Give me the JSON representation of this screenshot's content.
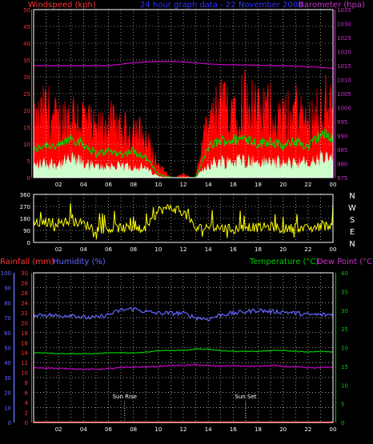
{
  "header": {
    "wind_label": "Windspeed (kph)",
    "title": "24 hour graph data - 22 November 2008",
    "baro_label": "Barometer (hpa)"
  },
  "lower_header": {
    "rain_label": "Rainfall (mm)",
    "humidity_label": "Humidity (%)",
    "temp_label": "Temperature (°C)",
    "dewpoint_label": "Dew Point (°C)"
  },
  "compass_labels": [
    "N",
    "W",
    "S",
    "E",
    "N"
  ],
  "x_ticks": [
    "02",
    "04",
    "06",
    "08",
    "10",
    "12",
    "14",
    "16",
    "18",
    "20",
    "22",
    "00"
  ],
  "annotations": {
    "sunrise": "Sun Rise",
    "sunset": "Sun Set"
  },
  "colors": {
    "wind_gust": "#ff0000",
    "wind_avg": "#00cc00",
    "wind_low": "#ccffcc",
    "barometer": "#cc00cc",
    "direction": "#ffff00",
    "humidity": "#6666ff",
    "temperature": "#00cc00",
    "dewpoint": "#cc00cc",
    "rainfall": "#ff0000",
    "left_axis": "#ff3333",
    "right_axis": "#cc33cc",
    "grid": "#ffffff"
  },
  "chart_data": [
    {
      "type": "area",
      "id": "wind_baro",
      "xlabel": "",
      "ylabel": "Windspeed (kph)",
      "ylim": [
        0,
        50
      ],
      "y_ticks": [
        0,
        5,
        10,
        15,
        20,
        25,
        30,
        35,
        40,
        45,
        50
      ],
      "y2label": "Barometer (hpa)",
      "y2lim": [
        975,
        1035
      ],
      "y2_ticks": [
        975,
        980,
        985,
        990,
        995,
        1000,
        1005,
        1010,
        1015,
        1020,
        1025,
        1030,
        1035
      ],
      "xlim": [
        0,
        24
      ],
      "x": [
        0,
        1,
        2,
        3,
        4,
        5,
        6,
        7,
        8,
        9,
        10,
        11,
        12,
        13,
        14,
        15,
        16,
        17,
        18,
        19,
        20,
        21,
        22,
        23,
        24
      ],
      "series": [
        {
          "name": "Windspeed (kph)",
          "values": [
            16,
            22,
            17,
            21,
            19,
            14,
            18,
            14,
            16,
            12,
            4,
            0,
            1,
            0,
            18,
            22,
            24,
            26,
            20,
            22,
            18,
            22,
            17,
            24,
            22
          ]
        },
        {
          "name": "",
          "values": [
            8,
            10,
            9,
            12,
            10,
            7,
            8,
            7,
            8,
            6,
            1,
            0,
            0,
            0,
            9,
            11,
            11,
            12,
            10,
            11,
            9,
            11,
            9,
            13,
            12
          ]
        },
        {
          "name": "Barometer (hpa)",
          "values": [
            1015,
            1015,
            1015,
            1015,
            1015,
            1015,
            1015,
            1015.5,
            1016,
            1016.3,
            1016.5,
            1016.5,
            1016.3,
            1016,
            1015.6,
            1015.4,
            1015.3,
            1015.2,
            1015.1,
            1015,
            1015,
            1014.8,
            1014.6,
            1014.4,
            1014
          ]
        }
      ],
      "grid": true
    },
    {
      "type": "scatter",
      "id": "direction",
      "ylabel": "",
      "ylim": [
        0,
        360
      ],
      "y_ticks": [
        0,
        90,
        180,
        270,
        360
      ],
      "xlim": [
        0,
        24
      ],
      "x": [
        0,
        1,
        2,
        3,
        4,
        5,
        6,
        7,
        8,
        9,
        10,
        11,
        12,
        13,
        14,
        15,
        16,
        17,
        18,
        19,
        20,
        21,
        22,
        23,
        24
      ],
      "series": [
        {
          "name": "",
          "values": [
            140,
            150,
            150,
            160,
            140,
            100,
            100,
            110,
            105,
            90,
            240,
            260,
            230,
            100,
            120,
            110,
            100,
            120,
            110,
            120,
            100,
            110,
            100,
            120,
            130
          ]
        }
      ],
      "grid": true
    },
    {
      "type": "line",
      "id": "temp_hum",
      "ylabel": "Rainfall (mm)",
      "ylim": [
        0,
        30
      ],
      "y_ticks": [
        0,
        2,
        4,
        6,
        8,
        10,
        12,
        14,
        16,
        18,
        20,
        22,
        24,
        26,
        28,
        30
      ],
      "humidity_lim": [
        0,
        100
      ],
      "humidity_ticks": [
        0,
        10,
        20,
        30,
        40,
        50,
        60,
        70,
        80,
        90,
        100
      ],
      "y2label": "Temperature (°C)",
      "y2lim": [
        0,
        40
      ],
      "y2_ticks": [
        0,
        5,
        10,
        15,
        20,
        25,
        30,
        35,
        40
      ],
      "xlim": [
        0,
        24
      ],
      "x": [
        0,
        1,
        2,
        3,
        4,
        5,
        6,
        7,
        8,
        9,
        10,
        11,
        12,
        13,
        14,
        15,
        16,
        17,
        18,
        19,
        20,
        21,
        22,
        23,
        24
      ],
      "series": [
        {
          "name": "Humidity (%)",
          "values": [
            72,
            72,
            71,
            72,
            70,
            70,
            72,
            75,
            76,
            74,
            73,
            73,
            73,
            70,
            69,
            72,
            73,
            74,
            75,
            74,
            74,
            73,
            72,
            72,
            72
          ]
        },
        {
          "name": "Temperature (°C)",
          "values": [
            18.6,
            18.6,
            18.4,
            18.4,
            18.4,
            18.4,
            18.6,
            18.6,
            18.6,
            18.8,
            19.2,
            19.2,
            19.2,
            19.6,
            19.6,
            19.2,
            19.0,
            19.0,
            19.0,
            19.2,
            19.2,
            19.0,
            18.8,
            19.0,
            18.8
          ]
        },
        {
          "name": "Dew Point (°C)",
          "values": [
            14.6,
            14.6,
            14.4,
            14.4,
            14.2,
            14.2,
            14.4,
            14.6,
            14.8,
            14.8,
            15.0,
            15.2,
            15.2,
            15.4,
            15.2,
            15.0,
            15.2,
            15.0,
            15.0,
            15.2,
            15.0,
            14.8,
            14.6,
            14.6,
            14.8
          ]
        },
        {
          "name": "Rainfall (mm)",
          "values": [
            0,
            0,
            0,
            0,
            0,
            0,
            0,
            0,
            0,
            0,
            0,
            0,
            0,
            0,
            0,
            0,
            0,
            0,
            0,
            0,
            0,
            0,
            0,
            0,
            0
          ]
        }
      ],
      "annotations": [
        {
          "text": "Sun Rise",
          "x": 7.3
        },
        {
          "text": "Sun Set",
          "x": 17.0
        }
      ],
      "grid": true
    }
  ]
}
